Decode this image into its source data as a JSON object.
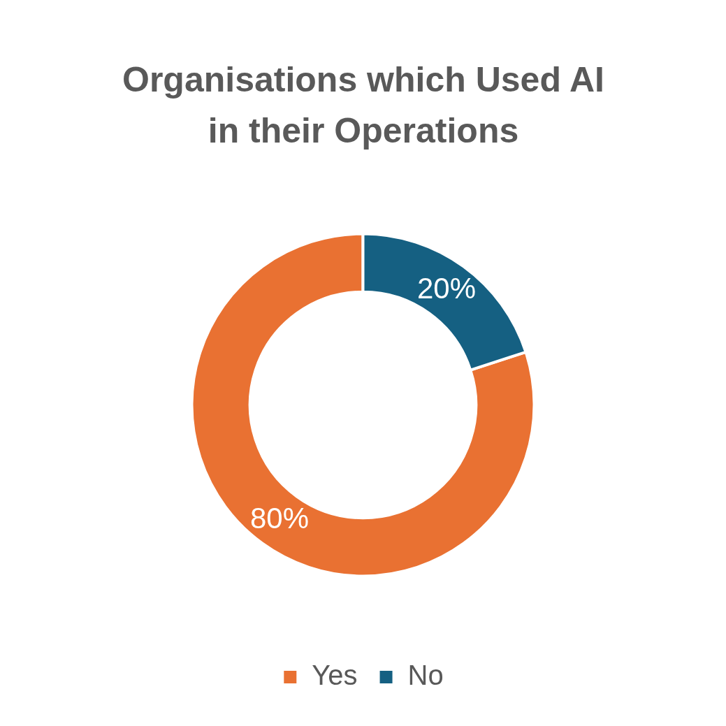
{
  "chart_data": {
    "type": "donut",
    "title": "Organisations which Used AI in their Operations",
    "categories": [
      "Yes",
      "No"
    ],
    "values": [
      80,
      20
    ],
    "colors": [
      "#e97132",
      "#156082"
    ],
    "value_labels": [
      "80%",
      "20%"
    ],
    "legend": "bottom"
  }
}
